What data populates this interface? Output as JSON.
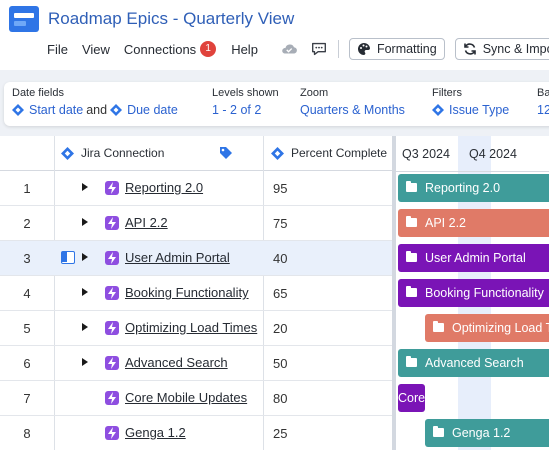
{
  "app": {
    "title": "Roadmap Epics - Quarterly View"
  },
  "menu": {
    "file": "File",
    "view": "View",
    "connections": "Connections",
    "connections_badge": "1",
    "help": "Help",
    "formatting": "Formatting",
    "sync": "Sync & Impor"
  },
  "settings": {
    "date_fields": {
      "label": "Date fields",
      "start": "Start date",
      "and": "and",
      "due": "Due date"
    },
    "levels": {
      "label": "Levels shown",
      "value": "1 - 2 of 2"
    },
    "zoom": {
      "label": "Zoom",
      "value": "Quarters & Months"
    },
    "filters": {
      "label": "Filters",
      "value": "Issue Type"
    },
    "extra": {
      "label": "Ba",
      "value": "12"
    }
  },
  "grid": {
    "headers": {
      "jira": "Jira Connection",
      "percent": "Percent Complete"
    },
    "rows": [
      {
        "num": "1",
        "name": "Reporting 2.0",
        "percent": "95",
        "expandable": true
      },
      {
        "num": "2",
        "name": "API 2.2",
        "percent": "75",
        "expandable": true
      },
      {
        "num": "3",
        "name": "User Admin Portal",
        "percent": "40",
        "expandable": true,
        "selected": true
      },
      {
        "num": "4",
        "name": "Booking Functionality",
        "percent": "65",
        "expandable": true
      },
      {
        "num": "5",
        "name": "Optimizing Load Times",
        "percent": "20",
        "expandable": true
      },
      {
        "num": "6",
        "name": "Advanced Search",
        "percent": "50",
        "expandable": true
      },
      {
        "num": "7",
        "name": "Core Mobile Updates",
        "percent": "80",
        "expandable": false
      },
      {
        "num": "8",
        "name": "Genga 1.2",
        "percent": "25",
        "expandable": false
      }
    ]
  },
  "timeline": {
    "quarters": [
      "Q3 2024",
      "Q4 2024"
    ],
    "bars": [
      {
        "label": "Reporting 2.0",
        "color": "#3f9c9a"
      },
      {
        "label": "API 2.2",
        "color": "#e07a67"
      },
      {
        "label": "User Admin Portal",
        "color": "#7a14b6"
      },
      {
        "label": "Booking Functionality",
        "color": "#7a14b6"
      },
      {
        "label": "Optimizing Load T",
        "color": "#e07a67"
      },
      {
        "label": "Advanced Search",
        "color": "#3f9c9a"
      },
      {
        "label": "Core",
        "color": "#7a14b6"
      },
      {
        "label": "Genga 1.2",
        "color": "#3f9c9a"
      }
    ]
  },
  "colors": {
    "accent": "#2b62d0",
    "badge": "#e0433c",
    "jira_icon": "#8e4ee0",
    "selected_row": "#e9f0fb"
  }
}
